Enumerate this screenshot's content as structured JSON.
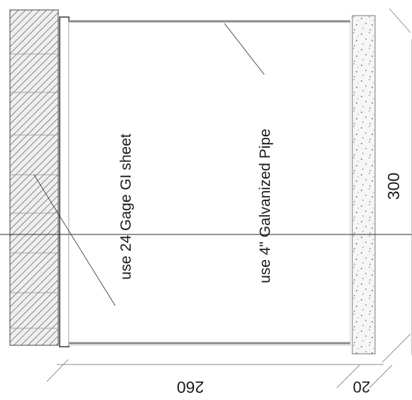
{
  "annotations": {
    "gi_sheet": "use 24 Gage GI sheet",
    "pipe": "use 4\" Galvanized Pipe"
  },
  "dimensions": {
    "overall_height": "300",
    "inner_width": "260",
    "edge_width": "20"
  }
}
